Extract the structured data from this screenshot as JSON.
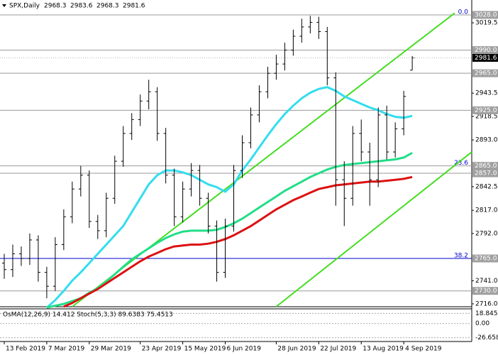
{
  "chart_data": {
    "type": "ohlc",
    "title": "SPX,Daily",
    "quote": [
      2968.3,
      2983.6,
      2968.3,
      2981.6
    ],
    "bar_color": "#000000",
    "xlim": [
      -0.5,
      55
    ],
    "xticks": [
      {
        "value": 0,
        "label": "13 Feb 2019"
      },
      {
        "value": 5,
        "label": "7 Mar 2019"
      },
      {
        "value": 10,
        "label": "29 Mar 2019"
      },
      {
        "value": 16,
        "label": "23 Apr 2019"
      },
      {
        "value": 21,
        "label": "15 May 2019"
      },
      {
        "value": 26,
        "label": "6 Jun 2019"
      },
      {
        "value": 32,
        "label": "28 Jun 2019"
      },
      {
        "value": 37,
        "label": "22 Jul 2019"
      },
      {
        "value": 42,
        "label": "13 Aug 2019"
      },
      {
        "value": 47,
        "label": "4 Sep 2019"
      }
    ],
    "ylim": [
      2712.9,
      3044.1
    ],
    "yticks": [
      3019.5,
      2943.5,
      2918.5,
      {
        "value": 2893,
        "label": "2893.0"
      },
      2842.5,
      {
        "value": 2817,
        "label": "2817.0"
      },
      {
        "value": 2792,
        "label": "2792.0"
      },
      {
        "value": 2741,
        "label": "2741.0"
      },
      {
        "value": 2716,
        "label": "2716.0"
      }
    ],
    "open": [
      2760,
      2753,
      2770,
      2765,
      2785,
      2750,
      2735,
      2780,
      2810,
      2840,
      2855,
      2805,
      2795,
      2830,
      2870,
      2900,
      2915,
      2935,
      2945,
      2900,
      2855,
      2810,
      2840,
      2860,
      2830,
      2800,
      2750,
      2800,
      2860,
      2890,
      2920,
      2945,
      2965,
      2975,
      2990,
      3005,
      3015,
      3020,
      3010,
      2960,
      2850,
      2830,
      2900,
      2880,
      2850,
      2920,
      2880,
      2905,
      2968.3
    ],
    "high": [
      2770,
      2780,
      2778,
      2792,
      2790,
      2756,
      2788,
      2818,
      2848,
      2865,
      2860,
      2812,
      2836,
      2876,
      2908,
      2922,
      2942,
      2958,
      2950,
      2906,
      2862,
      2848,
      2868,
      2866,
      2836,
      2806,
      2808,
      2866,
      2898,
      2928,
      2952,
      2972,
      2985,
      2998,
      3012,
      3024,
      3027,
      3026,
      3015,
      2966,
      2870,
      2908,
      2915,
      2890,
      2928,
      2930,
      2912,
      2946,
      2983.6
    ],
    "low": [
      2743,
      2745,
      2757,
      2758,
      2740,
      2722,
      2730,
      2774,
      2803,
      2832,
      2798,
      2786,
      2788,
      2824,
      2864,
      2893,
      2908,
      2926,
      2892,
      2846,
      2800,
      2804,
      2832,
      2822,
      2792,
      2740,
      2744,
      2794,
      2852,
      2884,
      2912,
      2938,
      2958,
      2968,
      2984,
      2998,
      3008,
      3002,
      2952,
      2822,
      2800,
      2822,
      2870,
      2822,
      2842,
      2872,
      2874,
      2898,
      2968.3
    ],
    "close": [
      2753,
      2770,
      2765,
      2785,
      2750,
      2735,
      2780,
      2810,
      2840,
      2855,
      2805,
      2795,
      2830,
      2870,
      2900,
      2915,
      2935,
      2945,
      2900,
      2855,
      2810,
      2840,
      2860,
      2830,
      2800,
      2750,
      2800,
      2860,
      2890,
      2920,
      2945,
      2965,
      2975,
      2990,
      3005,
      3015,
      3020,
      3010,
      2960,
      2850,
      2830,
      2900,
      2880,
      2850,
      2920,
      2880,
      2905,
      2940,
      2981.6
    ],
    "series": [
      {
        "color": "#33ddee",
        "values": [
          null,
          null,
          null,
          null,
          null,
          2712,
          2720,
          2730,
          2741,
          2750,
          2760,
          2770,
          2780,
          2790,
          2800,
          2815,
          2830,
          2845,
          2855,
          2860,
          2860,
          2858,
          2855,
          2850,
          2845,
          2842,
          2837,
          2845,
          2860,
          2872,
          2885,
          2898,
          2910,
          2921,
          2930,
          2938,
          2944,
          2948,
          2950,
          2946,
          2940,
          2936,
          2932,
          2928,
          2925,
          2921,
          2918,
          2917,
          2919
        ]
      },
      {
        "color": "#22dd88",
        "values": [
          null,
          null,
          null,
          null,
          null,
          2712,
          2714,
          2716,
          2719,
          2722,
          2728,
          2733,
          2740,
          2748,
          2756,
          2764,
          2770,
          2776,
          2782,
          2787,
          2791,
          2794,
          2795,
          2795,
          2795,
          2796,
          2799,
          2803,
          2808,
          2814,
          2820,
          2826,
          2832,
          2838,
          2843,
          2848,
          2853,
          2857,
          2861,
          2864,
          2866,
          2867,
          2868,
          2869,
          2870,
          2871,
          2872,
          2874,
          2879
        ]
      },
      {
        "color": "#dd1111",
        "values": [
          null,
          null,
          null,
          null,
          null,
          null,
          null,
          2713,
          2717,
          2722,
          2727,
          2732,
          2738,
          2744,
          2750,
          2756,
          2762,
          2767,
          2771,
          2775,
          2778,
          2779,
          2780,
          2780,
          2781,
          2783,
          2786,
          2790,
          2795,
          2800,
          2806,
          2812,
          2818,
          2823,
          2828,
          2832,
          2836,
          2840,
          2842,
          2844,
          2845,
          2846,
          2847,
          2848,
          2848,
          2849,
          2850,
          2851,
          2853
        ]
      }
    ],
    "trend_lines": [
      {
        "color": "#44dd22",
        "x": [
          8,
          53
        ],
        "y": [
          2713,
          3030
        ]
      },
      {
        "color": "#44dd22",
        "x": [
          32,
          55
        ],
        "y": [
          2713,
          2880
        ]
      }
    ],
    "levels": [
      {
        "value": 3028,
        "label": "3028.0"
      },
      {
        "value": 2990,
        "label": "2990.0"
      },
      {
        "value": 2965,
        "label": "2965.0"
      },
      {
        "value": 2925,
        "label": "2925.0"
      },
      {
        "value": 2865,
        "label": "2865.0"
      },
      {
        "value": 2857,
        "label": "2857.0"
      },
      {
        "value": 2765,
        "label": "2765.0"
      },
      {
        "value": 2730,
        "label": "2730.0"
      }
    ],
    "current": 2981.6,
    "fib": [
      {
        "value": 3028,
        "label": "0.0"
      },
      {
        "value": 2865,
        "label": "23.6"
      },
      {
        "value": 2765,
        "label": "38.2"
      }
    ],
    "indicator": {
      "title": "OsMA(12,26,9) 14.412 Stoch(5,3,3) 89.6383 75.4513",
      "ylim": [
        -33.8,
        27.4
      ],
      "yticks": [
        18.845,
        {
          "value": 0,
          "label": "0.00"
        },
        -26.658
      ]
    }
  }
}
